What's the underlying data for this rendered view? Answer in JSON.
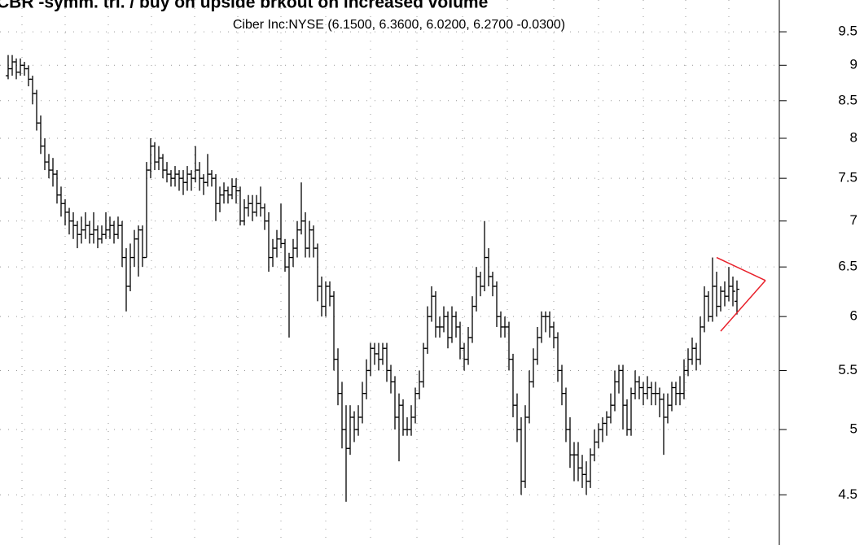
{
  "chart_data": {
    "type": "ohlc",
    "title": "CBR -symm. tri. / buy on upside brkout on increased volume",
    "subtitle": "Ciber Inc:NYSE (6.1500, 6.3600, 6.0200, 6.2700 -0.0300)",
    "log_scale": true,
    "grid": true,
    "color": "#000000",
    "ylim": [
      4.15,
      10.0
    ],
    "yticks": [
      4.5,
      5.0,
      5.5,
      6.0,
      6.5,
      7.0,
      7.5,
      8.0,
      8.5,
      9.0,
      9.5
    ],
    "ohlc": [
      [
        8.85,
        9.15,
        8.8,
        8.95
      ],
      [
        8.95,
        9.15,
        8.85,
        9.05
      ],
      [
        9.05,
        9.1,
        8.8,
        8.9
      ],
      [
        8.9,
        9.1,
        8.85,
        9.0
      ],
      [
        9.0,
        9.05,
        8.85,
        8.95
      ],
      [
        8.95,
        9.0,
        8.7,
        8.8
      ],
      [
        8.8,
        8.85,
        8.45,
        8.6
      ],
      [
        8.6,
        8.65,
        8.1,
        8.2
      ],
      [
        8.2,
        8.3,
        7.8,
        7.9
      ],
      [
        7.9,
        8.0,
        7.6,
        7.7
      ],
      [
        7.7,
        7.8,
        7.5,
        7.6
      ],
      [
        7.6,
        7.75,
        7.4,
        7.55
      ],
      [
        7.55,
        7.6,
        7.2,
        7.3
      ],
      [
        7.3,
        7.4,
        7.05,
        7.2
      ],
      [
        7.2,
        7.25,
        6.95,
        7.1
      ],
      [
        7.1,
        7.15,
        6.85,
        7.0
      ],
      [
        7.0,
        7.1,
        6.8,
        6.95
      ],
      [
        6.95,
        7.0,
        6.7,
        6.85
      ],
      [
        6.85,
        7.05,
        6.75,
        6.9
      ],
      [
        6.9,
        7.1,
        6.8,
        6.95
      ],
      [
        6.95,
        7.0,
        6.75,
        6.85
      ],
      [
        6.85,
        7.1,
        6.75,
        6.9
      ],
      [
        6.9,
        6.95,
        6.7,
        6.8
      ],
      [
        6.8,
        6.95,
        6.75,
        6.85
      ],
      [
        6.85,
        7.1,
        6.8,
        6.9
      ],
      [
        6.9,
        7.05,
        6.8,
        6.95
      ],
      [
        6.95,
        7.0,
        6.75,
        6.85
      ],
      [
        6.85,
        7.05,
        6.8,
        6.95
      ],
      [
        6.95,
        7.0,
        6.5,
        6.6
      ],
      [
        6.6,
        6.7,
        6.05,
        6.3
      ],
      [
        6.3,
        6.75,
        6.25,
        6.6
      ],
      [
        6.6,
        6.9,
        6.5,
        6.8
      ],
      [
        6.8,
        6.95,
        6.4,
        6.9
      ],
      [
        6.9,
        6.95,
        6.5,
        6.6
      ],
      [
        6.6,
        7.7,
        6.6,
        7.6
      ],
      [
        7.6,
        8.0,
        7.5,
        7.9
      ],
      [
        7.9,
        7.95,
        7.6,
        7.7
      ],
      [
        7.7,
        7.9,
        7.6,
        7.75
      ],
      [
        7.75,
        7.8,
        7.5,
        7.6
      ],
      [
        7.6,
        7.7,
        7.45,
        7.55
      ],
      [
        7.55,
        7.6,
        7.4,
        7.5
      ],
      [
        7.5,
        7.65,
        7.4,
        7.55
      ],
      [
        7.55,
        7.6,
        7.35,
        7.5
      ],
      [
        7.5,
        7.6,
        7.3,
        7.45
      ],
      [
        7.45,
        7.65,
        7.35,
        7.55
      ],
      [
        7.55,
        7.6,
        7.35,
        7.5
      ],
      [
        7.5,
        7.9,
        7.45,
        7.6
      ],
      [
        7.6,
        7.7,
        7.35,
        7.5
      ],
      [
        7.5,
        7.55,
        7.3,
        7.45
      ],
      [
        7.45,
        7.8,
        7.4,
        7.55
      ],
      [
        7.55,
        7.6,
        7.4,
        7.5
      ],
      [
        7.5,
        7.55,
        7.0,
        7.2
      ],
      [
        7.2,
        7.4,
        7.1,
        7.3
      ],
      [
        7.3,
        7.45,
        7.2,
        7.35
      ],
      [
        7.35,
        7.4,
        7.2,
        7.3
      ],
      [
        7.3,
        7.5,
        7.25,
        7.4
      ],
      [
        7.4,
        7.5,
        7.2,
        7.35
      ],
      [
        7.35,
        7.4,
        6.95,
        7.0
      ],
      [
        7.0,
        7.25,
        6.95,
        7.15
      ],
      [
        7.15,
        7.3,
        7.05,
        7.2
      ],
      [
        7.2,
        7.3,
        7.0,
        7.1
      ],
      [
        7.1,
        7.3,
        7.05,
        7.2
      ],
      [
        7.2,
        7.4,
        7.05,
        7.15
      ],
      [
        7.15,
        7.2,
        6.9,
        7.0
      ],
      [
        7.0,
        7.1,
        6.45,
        6.6
      ],
      [
        6.6,
        6.8,
        6.5,
        6.7
      ],
      [
        6.7,
        6.9,
        6.6,
        6.8
      ],
      [
        6.8,
        7.2,
        6.7,
        6.75
      ],
      [
        6.75,
        6.8,
        6.45,
        6.5
      ],
      [
        6.5,
        6.65,
        5.8,
        6.6
      ],
      [
        6.6,
        6.8,
        6.5,
        6.7
      ],
      [
        6.7,
        7.0,
        6.6,
        6.9
      ],
      [
        6.9,
        7.45,
        6.85,
        7.0
      ],
      [
        7.0,
        7.1,
        6.6,
        6.7
      ],
      [
        6.7,
        7.0,
        6.6,
        6.9
      ],
      [
        6.9,
        6.95,
        6.6,
        6.7
      ],
      [
        6.7,
        6.75,
        6.15,
        6.3
      ],
      [
        6.3,
        6.4,
        6.0,
        6.1
      ],
      [
        6.1,
        6.35,
        6.0,
        6.3
      ],
      [
        6.3,
        6.35,
        6.1,
        6.2
      ],
      [
        6.2,
        6.25,
        5.5,
        5.6
      ],
      [
        5.6,
        5.7,
        5.2,
        5.3
      ],
      [
        5.3,
        5.4,
        4.85,
        5.0
      ],
      [
        5.0,
        5.2,
        4.45,
        4.85
      ],
      [
        4.85,
        5.2,
        4.8,
        5.1
      ],
      [
        5.1,
        5.15,
        4.9,
        5.0
      ],
      [
        5.0,
        5.2,
        4.95,
        5.1
      ],
      [
        5.1,
        5.4,
        5.05,
        5.3
      ],
      [
        5.3,
        5.6,
        5.25,
        5.5
      ],
      [
        5.5,
        5.75,
        5.45,
        5.7
      ],
      [
        5.7,
        5.75,
        5.55,
        5.65
      ],
      [
        5.65,
        5.75,
        5.5,
        5.6
      ],
      [
        5.6,
        5.75,
        5.55,
        5.7
      ],
      [
        5.7,
        5.75,
        5.4,
        5.5
      ],
      [
        5.5,
        5.55,
        5.3,
        5.4
      ],
      [
        5.4,
        5.45,
        5.0,
        5.1
      ],
      [
        5.1,
        5.3,
        4.75,
        5.2
      ],
      [
        5.2,
        5.25,
        4.95,
        5.0
      ],
      [
        5.0,
        5.1,
        4.95,
        5.0
      ],
      [
        5.0,
        5.2,
        4.95,
        5.1
      ],
      [
        5.1,
        5.35,
        5.05,
        5.3
      ],
      [
        5.3,
        5.5,
        5.25,
        5.4
      ],
      [
        5.4,
        5.75,
        5.35,
        5.7
      ],
      [
        5.7,
        6.1,
        5.65,
        6.0
      ],
      [
        6.0,
        6.3,
        5.95,
        6.2
      ],
      [
        6.2,
        6.25,
        5.8,
        5.9
      ],
      [
        5.9,
        6.0,
        5.8,
        5.9
      ],
      [
        5.9,
        6.1,
        5.85,
        6.0
      ],
      [
        6.0,
        6.05,
        5.7,
        5.8
      ],
      [
        5.8,
        6.1,
        5.75,
        6.0
      ],
      [
        6.0,
        6.05,
        5.8,
        5.9
      ],
      [
        5.9,
        5.95,
        5.6,
        5.7
      ],
      [
        5.7,
        5.75,
        5.5,
        5.6
      ],
      [
        5.6,
        5.9,
        5.55,
        5.8
      ],
      [
        5.8,
        6.2,
        5.75,
        6.1
      ],
      [
        6.1,
        6.5,
        6.05,
        6.4
      ],
      [
        6.4,
        6.45,
        6.2,
        6.3
      ],
      [
        6.3,
        7.0,
        6.25,
        6.6
      ],
      [
        6.6,
        6.7,
        6.3,
        6.4
      ],
      [
        6.4,
        6.45,
        6.2,
        6.3
      ],
      [
        6.3,
        6.35,
        5.9,
        6.0
      ],
      [
        6.0,
        6.05,
        5.8,
        5.9
      ],
      [
        5.9,
        6.0,
        5.8,
        5.9
      ],
      [
        5.9,
        5.95,
        5.5,
        5.6
      ],
      [
        5.6,
        5.65,
        5.1,
        5.2
      ],
      [
        5.2,
        5.3,
        4.9,
        5.0
      ],
      [
        5.0,
        5.1,
        4.5,
        4.6
      ],
      [
        4.6,
        5.2,
        4.55,
        5.1
      ],
      [
        5.1,
        5.5,
        5.05,
        5.4
      ],
      [
        5.4,
        5.7,
        5.35,
        5.6
      ],
      [
        5.6,
        5.9,
        5.55,
        5.8
      ],
      [
        5.8,
        6.05,
        5.75,
        6.0
      ],
      [
        6.0,
        6.05,
        5.85,
        6.0
      ],
      [
        6.0,
        6.05,
        5.8,
        5.9
      ],
      [
        5.9,
        5.95,
        5.7,
        5.8
      ],
      [
        5.8,
        5.85,
        5.4,
        5.5
      ],
      [
        5.5,
        5.55,
        5.2,
        5.3
      ],
      [
        5.3,
        5.35,
        4.9,
        5.0
      ],
      [
        5.0,
        5.1,
        4.7,
        4.8
      ],
      [
        4.8,
        4.9,
        4.6,
        4.8
      ],
      [
        4.8,
        4.9,
        4.6,
        4.7
      ],
      [
        4.7,
        4.8,
        4.55,
        4.65
      ],
      [
        4.65,
        4.75,
        4.5,
        4.6
      ],
      [
        4.6,
        4.85,
        4.55,
        4.8
      ],
      [
        4.8,
        5.0,
        4.75,
        4.9
      ],
      [
        4.9,
        5.05,
        4.85,
        5.0
      ],
      [
        5.0,
        5.1,
        4.9,
        5.05
      ],
      [
        5.05,
        5.15,
        4.95,
        5.1
      ],
      [
        5.1,
        5.3,
        5.05,
        5.2
      ],
      [
        5.2,
        5.5,
        5.15,
        5.4
      ],
      [
        5.4,
        5.55,
        5.3,
        5.5
      ],
      [
        5.5,
        5.55,
        5.0,
        5.2
      ],
      [
        5.2,
        5.25,
        4.95,
        5.0
      ],
      [
        5.0,
        5.35,
        4.95,
        5.3
      ],
      [
        5.3,
        5.5,
        5.25,
        5.4
      ],
      [
        5.4,
        5.45,
        5.25,
        5.35
      ],
      [
        5.35,
        5.4,
        5.2,
        5.3
      ],
      [
        5.3,
        5.45,
        5.25,
        5.35
      ],
      [
        5.35,
        5.4,
        5.2,
        5.3
      ],
      [
        5.3,
        5.4,
        5.2,
        5.3
      ],
      [
        5.3,
        5.35,
        5.1,
        5.25
      ],
      [
        5.25,
        5.3,
        4.8,
        5.1
      ],
      [
        5.1,
        5.3,
        5.05,
        5.2
      ],
      [
        5.2,
        5.4,
        5.15,
        5.35
      ],
      [
        5.35,
        5.4,
        5.2,
        5.3
      ],
      [
        5.3,
        5.45,
        5.2,
        5.3
      ],
      [
        5.3,
        5.6,
        5.25,
        5.5
      ],
      [
        5.5,
        5.7,
        5.45,
        5.6
      ],
      [
        5.6,
        5.8,
        5.55,
        5.7
      ],
      [
        5.7,
        5.75,
        5.5,
        5.6
      ],
      [
        5.6,
        6.0,
        5.55,
        5.9
      ],
      [
        5.9,
        6.3,
        5.85,
        6.2
      ],
      [
        6.2,
        6.25,
        5.95,
        6.0
      ],
      [
        6.0,
        6.6,
        5.95,
        6.3
      ],
      [
        6.3,
        6.45,
        6.0,
        6.1
      ],
      [
        6.1,
        6.3,
        6.05,
        6.25
      ],
      [
        6.25,
        6.35,
        6.1,
        6.2
      ],
      [
        6.2,
        6.5,
        6.15,
        6.3
      ],
      [
        6.3,
        6.4,
        6.1,
        6.25
      ],
      [
        6.15,
        6.36,
        6.02,
        6.27
      ]
    ],
    "trendlines": [
      {
        "color": "#e8202a",
        "x": [
          174,
          186
        ],
        "values": [
          6.6,
          6.36
        ]
      },
      {
        "color": "#e8202a",
        "x": [
          175,
          186
        ],
        "values": [
          5.86,
          6.36
        ]
      }
    ]
  }
}
